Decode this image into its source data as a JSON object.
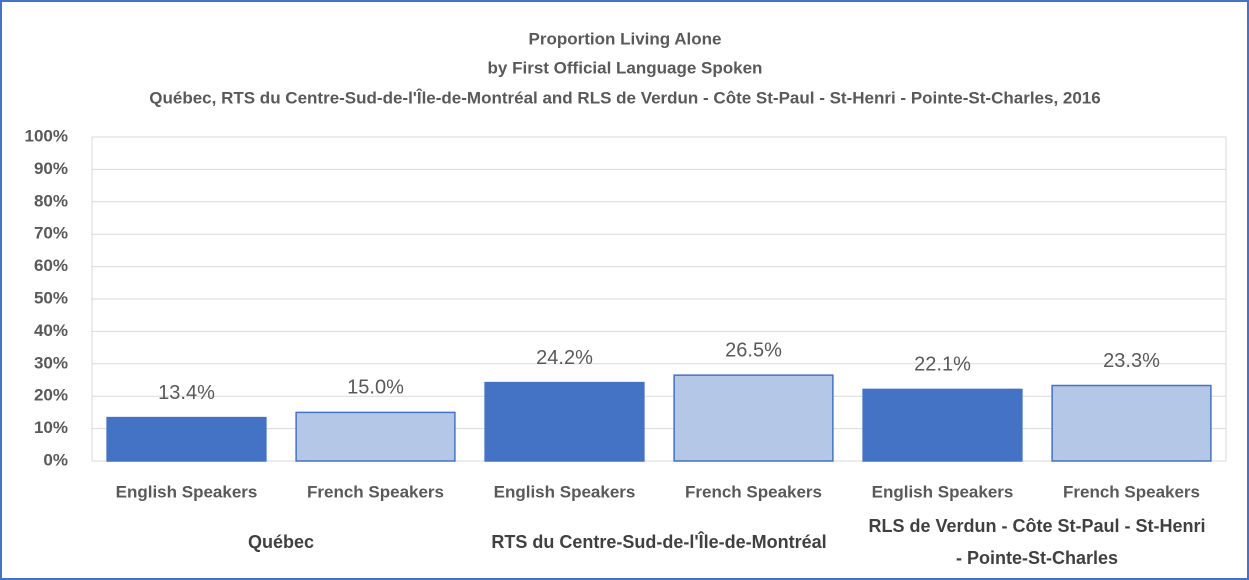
{
  "chart_data": {
    "type": "bar",
    "title": "Proportion Living Alone",
    "subtitle": "by First Official Language Spoken",
    "subtitle2": "Québec, RTS du Centre-Sud-de-l'Île-de-Montréal and RLS de Verdun - Côte St-Paul - St-Henri - Pointe-St-Charles, 2016",
    "categories": [
      "English Speakers",
      "French Speakers",
      "English Speakers",
      "French Speakers",
      "English Speakers",
      "French Speakers"
    ],
    "groups": [
      "Québec",
      "RTS du Centre-Sud-de-l'Île-de-Montréal",
      "RLS de Verdun - Côte St-Paul - St-Henri - Pointe-St-Charles"
    ],
    "values": [
      13.4,
      15.0,
      24.2,
      26.5,
      22.1,
      23.3
    ],
    "value_labels": [
      "13.4%",
      "15.0%",
      "24.2%",
      "26.5%",
      "22.1%",
      "23.3%"
    ],
    "colors": [
      "#4472c4",
      "#b4c7e7",
      "#4472c4",
      "#b4c7e7",
      "#4472c4",
      "#b4c7e7"
    ],
    "border_color": "#4472c4",
    "ylim": [
      0,
      100
    ],
    "yticks": [
      {
        "value": 0,
        "label": "0%"
      },
      {
        "value": 10,
        "label": "10%"
      },
      {
        "value": 20,
        "label": "20%"
      },
      {
        "value": 30,
        "label": "30%"
      },
      {
        "value": 40,
        "label": "40%"
      },
      {
        "value": 50,
        "label": "50%"
      },
      {
        "value": 60,
        "label": "60%"
      },
      {
        "value": 70,
        "label": "70%"
      },
      {
        "value": 80,
        "label": "80%"
      },
      {
        "value": 90,
        "label": "90%"
      },
      {
        "value": 100,
        "label": "100%"
      }
    ],
    "grid": true
  }
}
